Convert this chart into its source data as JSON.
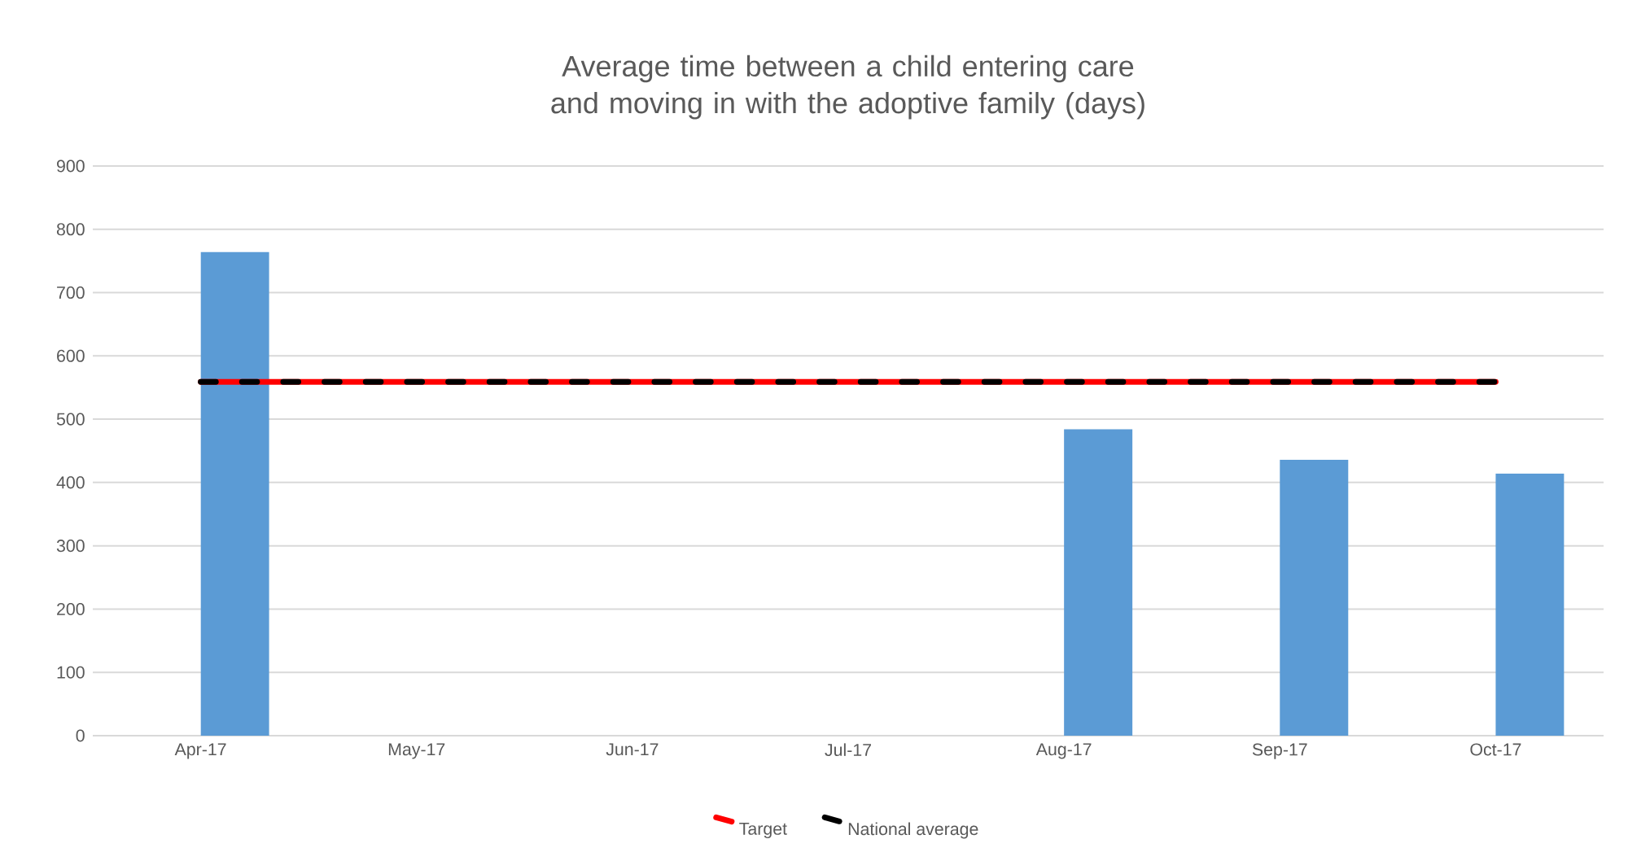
{
  "chart_data": {
    "type": "bar",
    "title": "Average time between a child entering care and moving in with the adoptive family (days)",
    "categories": [
      "Apr-17",
      "May-17",
      "Jun-17",
      "Jul-17",
      "Aug-17",
      "Sep-17",
      "Oct-17"
    ],
    "series": [
      {
        "type": "bar",
        "color": "#5b9bd5",
        "values": [
          764,
          null,
          null,
          null,
          484,
          436,
          414
        ]
      },
      {
        "type": "line",
        "name": "Target",
        "color": "#ff0000",
        "line_style": "solid",
        "values": [
          559,
          559,
          559,
          559,
          559,
          559,
          559
        ]
      },
      {
        "type": "line",
        "name": "National average",
        "color": "#000000",
        "line_style": "dashed",
        "values": [
          559,
          559,
          559,
          559,
          559,
          559,
          559
        ]
      }
    ],
    "ylim": [
      0,
      900
    ],
    "yticks": [
      0,
      100,
      200,
      300,
      400,
      500,
      600,
      700,
      800,
      900
    ],
    "grid": "y",
    "legend": "bottom",
    "marker": "none"
  }
}
